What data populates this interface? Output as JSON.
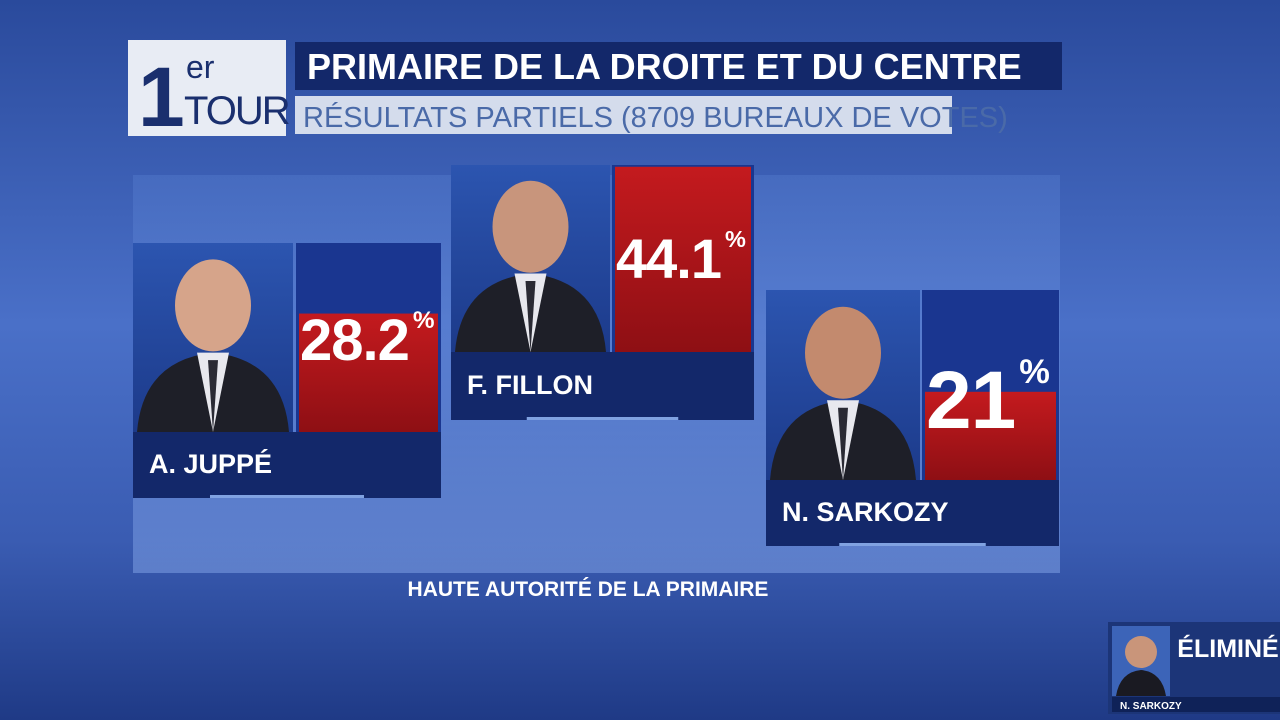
{
  "badge": {
    "number": "1",
    "superscript": "er",
    "label": "TOUR"
  },
  "header": {
    "title": "PRIMAIRE DE LA DROITE ET DU CENTRE",
    "subtitle": "RÉSULTATS PARTIELS (8709 BUREAUX DE VOTES)"
  },
  "candidates": [
    {
      "name": "A. JUPPÉ",
      "value": 28.2,
      "unit": "%"
    },
    {
      "name": "F. FILLON",
      "value": 44.1,
      "unit": "%"
    },
    {
      "name": "N. SARKOZY",
      "value": 21,
      "unit": "%"
    }
  ],
  "source": "HAUTE AUTORITÉ DE LA PRIMAIRE",
  "inset": {
    "status": "ÉLIMINÉ",
    "name": "N. SARKOZY"
  }
}
